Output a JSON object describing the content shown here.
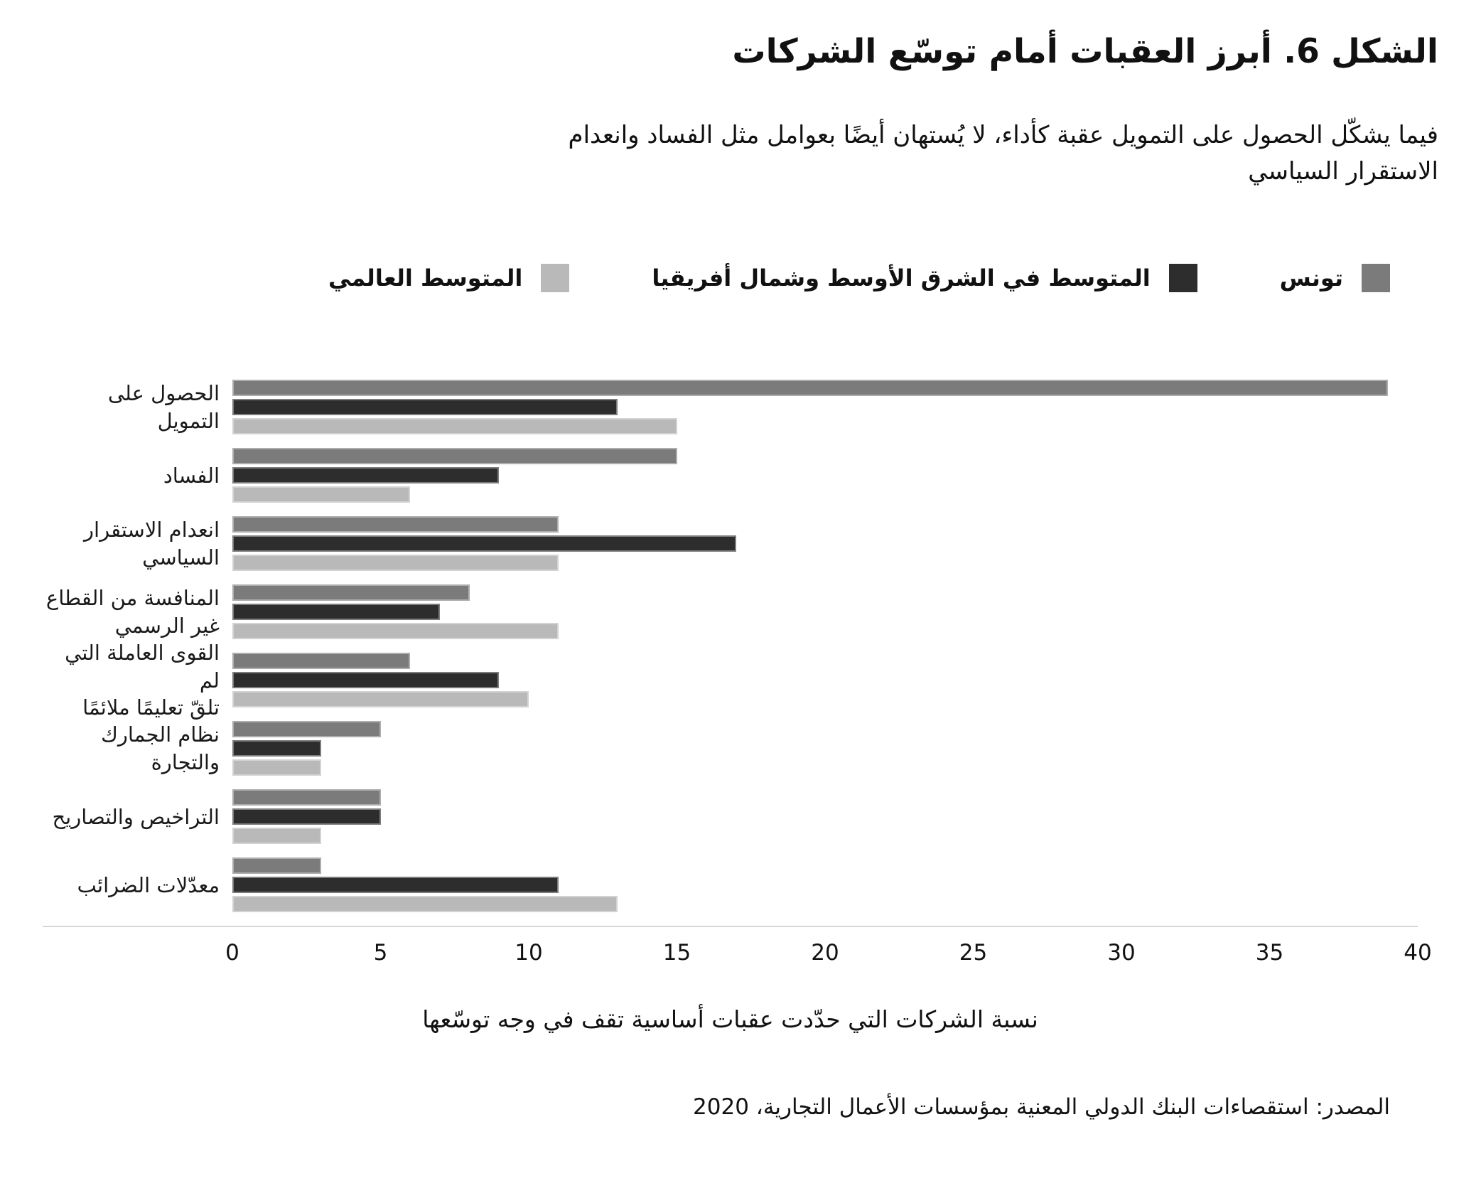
{
  "figure": {
    "title": "الشكل 6. أبرز العقبات أمام توسّع الشركات",
    "subtitle": "فيما يشكّل الحصول على التمويل عقبة كأداء، لا يُستهان أيضًا بعوامل مثل الفساد وانعدام\nالاستقرار السياسي",
    "source": "المصدر: استقصاءات البنك الدولي المعنية بمؤسسات الأعمال التجارية، 2020"
  },
  "legend": [
    {
      "key": "tunisia",
      "label": "تونس",
      "color": "#7b7b7b"
    },
    {
      "key": "mena-average",
      "label": "المتوسط في الشرق الأوسط وشمال أفريقيا",
      "color": "#2d2d2d"
    },
    {
      "key": "global-average",
      "label": "المتوسط العالمي",
      "color": "#b9b9b9"
    }
  ],
  "chart_data": {
    "type": "bar",
    "orientation": "horizontal",
    "title": "الشكل 6. أبرز العقبات أمام توسّع الشركات",
    "xlabel": "نسبة الشركات التي حدّدت عقبات أساسية تقف في وجه توسّعها",
    "ylabel": "",
    "xlim": [
      0,
      40
    ],
    "xticks": [
      0,
      5,
      10,
      15,
      20,
      25,
      30,
      35,
      40
    ],
    "grid": false,
    "legend_position": "top-right",
    "categories": [
      "الحصول على التمويل",
      "الفساد",
      "انعدام الاستقرار\nالسياسي",
      "المنافسة من القطاع\nغير الرسمي",
      "القوى العاملة التي لم\nتلقّ تعليمًا ملائمًا",
      "نظام الجمارك والتجارة",
      "التراخيص والتصاريح",
      "معدّلات الضرائب"
    ],
    "series": [
      {
        "key": "tunisia",
        "name": "تونس",
        "color": "#7b7b7b",
        "values": [
          39,
          15,
          11,
          8,
          6,
          5,
          5,
          3
        ]
      },
      {
        "key": "mena-average",
        "name": "المتوسط في الشرق الأوسط وشمال أفريقيا",
        "color": "#2d2d2d",
        "values": [
          13,
          9,
          17,
          7,
          9,
          3,
          5,
          11
        ]
      },
      {
        "key": "global-average",
        "name": "المتوسط العالمي",
        "color": "#b9b9b9",
        "values": [
          15,
          6,
          11,
          11,
          10,
          3,
          3,
          13
        ]
      }
    ]
  }
}
